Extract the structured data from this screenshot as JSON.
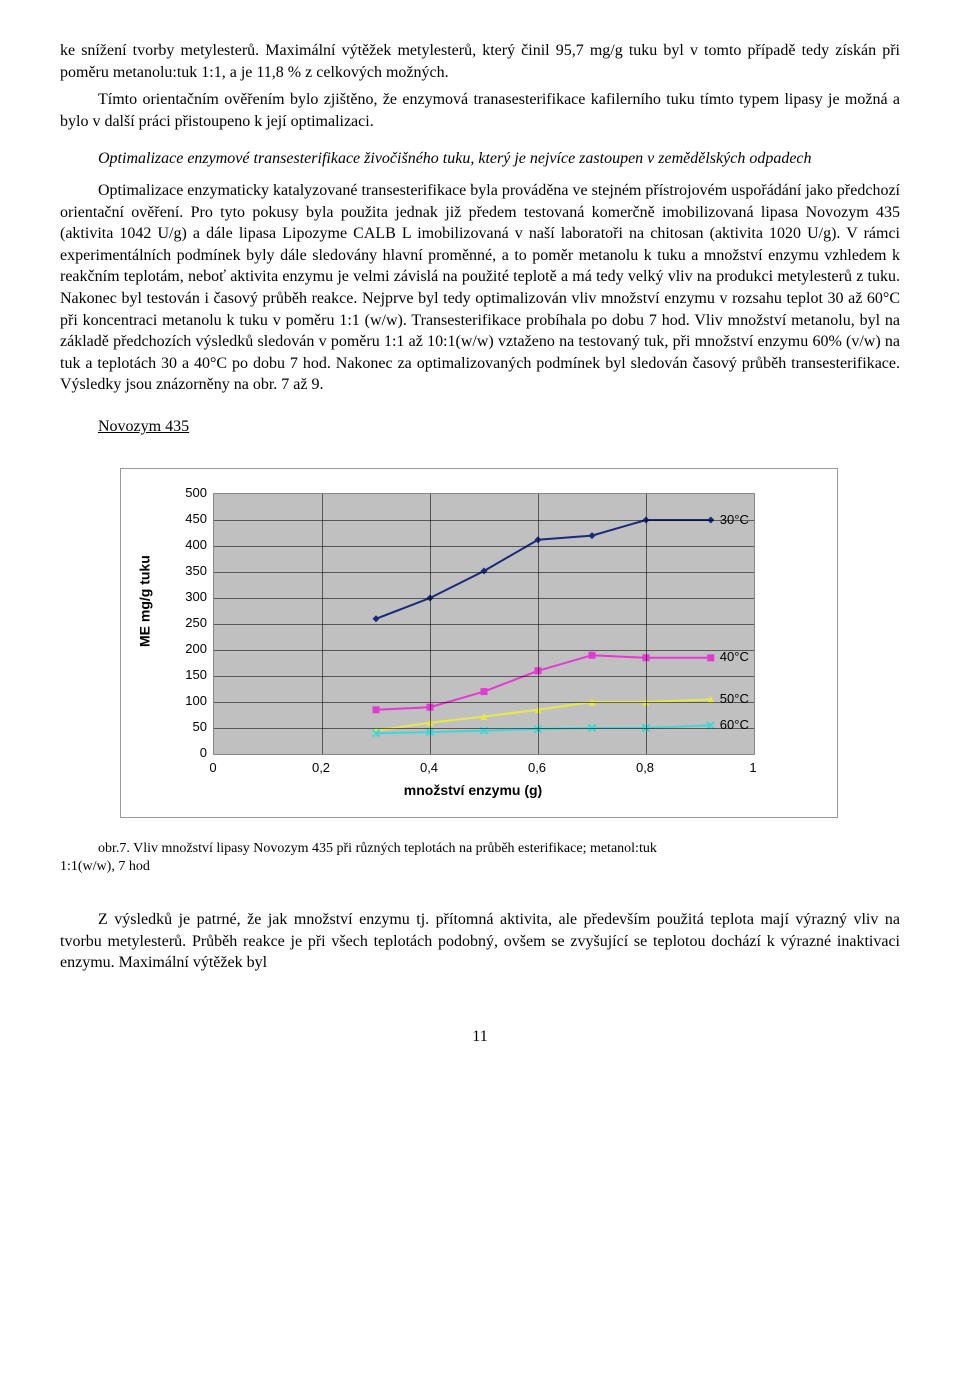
{
  "para1": "ke snížení tvorby metylesterů. Maximální výtěžek metylesterů, který činil 95,7 mg/g tuku byl v tomto případě tedy získán při poměru metanolu:tuk 1:1, a je 11,8 % z celkových možných.",
  "para2": "Tímto orientačním ověřením bylo zjištěno, že enzymová tranasesterifikace kafilerního tuku tímto typem lipasy je možná a bylo v další práci přistoupeno k její optimalizaci.",
  "para3": "Optimalizace enzymové transesterifikace živočišného tuku, který je nejvíce zastoupen v zemědělských odpadech",
  "para4": "Optimalizace enzymaticky katalyzované transesterifikace byla prováděna ve stejném přístrojovém uspořádání jako předchozí orientační ověření. Pro tyto pokusy byla použita jednak již předem testovaná komerčně imobilizovaná lipasa Novozym 435 (aktivita 1042 U/g) a dále lipasa Lipozyme CALB L imobilizovaná v naší laboratoři na chitosan (aktivita 1020 U/g). V rámci experimentálních podmínek byly dále sledovány hlavní proměnné, a to poměr metanolu k tuku a množství enzymu vzhledem k reakčním teplotám, neboť aktivita enzymu je velmi závislá na použité teplotě a má tedy velký vliv na produkci metylesterů z tuku. Nakonec byl testován i časový průběh reakce. Nejprve byl tedy optimalizován vliv množství enzymu v rozsahu teplot 30 až 60°C při koncentraci metanolu k tuku v poměru 1:1 (w/w). Transesterifikace probíhala po dobu 7 hod. Vliv množství metanolu, byl na základě předchozích výsledků sledován v poměru 1:1 až 10:1(w/w) vztaženo na testovaný tuk, při množství enzymu 60% (v/w) na tuk a teplotách 30 a 40°C po dobu 7 hod. Nakonec za optimalizovaných podmínek byl sledován časový průběh transesterifikace. Výsledky jsou znázorněny na obr. 7 až 9.",
  "heading": "Novozym 435",
  "caption_a": "obr.7. Vliv množství lipasy Novozym 435 při různých teplotách na průběh esterifikace; metanol:tuk",
  "caption_b": "1:1(w/w), 7 hod",
  "para5": "Z výsledků je patrné, že jak množství enzymu tj. přítomná aktivita, ale především použitá teplota mají výrazný vliv na tvorbu metylesterů. Průběh reakce je při všech teplotách podobný, ovšem se zvyšující se teplotou dochází k výrazné inaktivaci enzymu. Maximální výtěžek byl",
  "pagenum": "11",
  "chart": {
    "type": "line",
    "ylabel": "ME mg/g tuku",
    "xlabel": "množství enzymu (g)",
    "ylim": [
      0,
      500
    ],
    "ytick_step": 50,
    "xlim": [
      0,
      1
    ],
    "xtick_step": 0.2,
    "background_color": "#c0c0c0",
    "grid_color": "#505050",
    "label_fontsize": 14,
    "tick_fontsize": 13,
    "line_width": 2,
    "marker_size": 7,
    "series": [
      {
        "name": "30°C",
        "color": "#1a2a7a",
        "marker": "diamond",
        "x": [
          0.3,
          0.4,
          0.5,
          0.6,
          0.7,
          0.8
        ],
        "y": [
          260,
          300,
          352,
          412,
          420,
          450
        ]
      },
      {
        "name": "40°C",
        "color": "#e23bd1",
        "marker": "square",
        "x": [
          0.3,
          0.4,
          0.5,
          0.6,
          0.7,
          0.8
        ],
        "y": [
          85,
          90,
          120,
          160,
          190,
          185
        ]
      },
      {
        "name": "50°C",
        "color": "#e8e84a",
        "marker": "triangle",
        "x": [
          0.3,
          0.4,
          0.5,
          0.6,
          0.7,
          0.8
        ],
        "y": [
          45,
          60,
          72,
          85,
          100,
          100
        ]
      },
      {
        "name": "60°C",
        "color": "#3fd8d8",
        "marker": "x",
        "x": [
          0.3,
          0.4,
          0.5,
          0.6,
          0.7,
          0.8
        ],
        "y": [
          40,
          42,
          45,
          48,
          50,
          50
        ]
      }
    ],
    "legend_right_x": 0.92,
    "legend_y_offsets": [
      450,
      185,
      105,
      55
    ]
  }
}
